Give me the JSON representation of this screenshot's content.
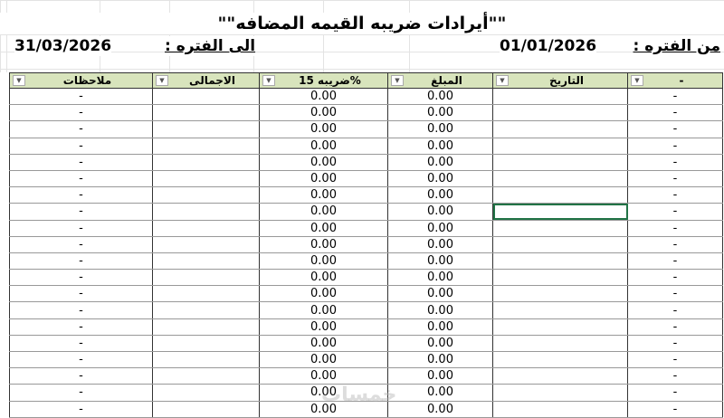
{
  "title": "\"\"أيرادات ضريبه القيمه المضافه\"\"",
  "period": {
    "from_label": "من الفتره :",
    "from_value": "01/01/2026",
    "to_label": "الى الفتره :",
    "to_value": "31/03/2026"
  },
  "columns": [
    "ملاحظات",
    "الاجمالى",
    "ضريبه 15%",
    "المبلغ",
    "التاريخ",
    "-"
  ],
  "rows": [
    [
      "-",
      "",
      "0.00",
      "0.00",
      "",
      "-"
    ],
    [
      "-",
      "",
      "0.00",
      "0.00",
      "",
      "-"
    ],
    [
      "-",
      "",
      "0.00",
      "0.00",
      "",
      "-"
    ],
    [
      "-",
      "",
      "0.00",
      "0.00",
      "",
      "-"
    ],
    [
      "-",
      "",
      "0.00",
      "0.00",
      "",
      "-"
    ],
    [
      "-",
      "",
      "0.00",
      "0.00",
      "",
      "-"
    ],
    [
      "-",
      "",
      "0.00",
      "0.00",
      "",
      "-"
    ],
    [
      "-",
      "",
      "0.00",
      "0.00",
      "",
      "-"
    ],
    [
      "-",
      "",
      "0.00",
      "0.00",
      "",
      "-"
    ],
    [
      "-",
      "",
      "0.00",
      "0.00",
      "",
      "-"
    ],
    [
      "-",
      "",
      "0.00",
      "0.00",
      "",
      "-"
    ],
    [
      "-",
      "",
      "0.00",
      "0.00",
      "",
      "-"
    ],
    [
      "-",
      "",
      "0.00",
      "0.00",
      "",
      "-"
    ],
    [
      "-",
      "",
      "0.00",
      "0.00",
      "",
      "-"
    ],
    [
      "-",
      "",
      "0.00",
      "0.00",
      "",
      "-"
    ],
    [
      "-",
      "",
      "0.00",
      "0.00",
      "",
      "-"
    ],
    [
      "-",
      "",
      "0.00",
      "0.00",
      "",
      "-"
    ],
    [
      "-",
      "",
      "0.00",
      "0.00",
      "",
      "-"
    ],
    [
      "-",
      "",
      "0.00",
      "0.00",
      "",
      "-"
    ],
    [
      "-",
      "",
      "0.00",
      "0.00",
      "",
      "-"
    ]
  ],
  "selected_cell": {
    "row": 7,
    "column": "التاريخ"
  },
  "watermark": "خمسات",
  "colors": {
    "header_bg": "#d8e4bc",
    "selection": "#217346"
  }
}
